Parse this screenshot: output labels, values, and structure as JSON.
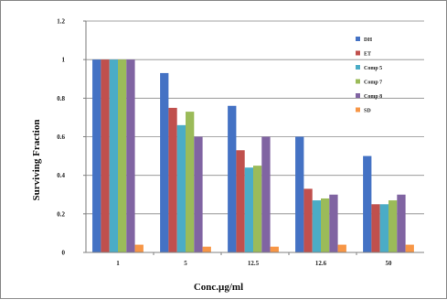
{
  "chart_data": {
    "type": "bar",
    "title": "",
    "xlabel": "Conc.µg/ml",
    "ylabel": "Surviving Fraction",
    "ylim": [
      0,
      1.2
    ],
    "yticks": [
      "0",
      "0.2",
      "0.4",
      "0.6",
      "0.8",
      "1",
      "1.2"
    ],
    "grid": true,
    "legend_position": "right",
    "categories": [
      "1",
      "5",
      "12.5",
      "12.6",
      "50"
    ],
    "series": [
      {
        "name": "DH",
        "color": "#4472C4",
        "values": [
          1.0,
          0.93,
          0.76,
          0.6,
          0.5
        ]
      },
      {
        "name": "ET",
        "color": "#C0504D",
        "values": [
          1.0,
          0.75,
          0.53,
          0.33,
          0.25
        ]
      },
      {
        "name": "Comp 5",
        "color": "#4BACC6",
        "values": [
          1.0,
          0.66,
          0.44,
          0.27,
          0.25
        ]
      },
      {
        "name": "Comp 7",
        "color": "#9BBB59",
        "values": [
          1.0,
          0.73,
          0.45,
          0.28,
          0.27
        ]
      },
      {
        "name": "Comp 8",
        "color": "#8064A2",
        "values": [
          1.0,
          0.6,
          0.6,
          0.3,
          0.3
        ]
      },
      {
        "name": "SD",
        "color": "#F79646",
        "values": [
          0.04,
          0.03,
          0.03,
          0.04,
          0.04
        ]
      }
    ]
  }
}
